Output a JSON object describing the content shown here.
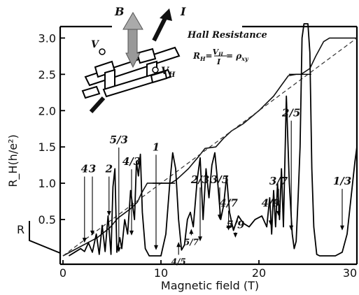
{
  "chart_data": {
    "type": "line",
    "title": "",
    "xlabel": "Magnetic field (T)",
    "ylabel": "R_H(h/e²)",
    "xlim": [
      0,
      30
    ],
    "ylim": [
      0,
      3.1
    ],
    "x_ticks": [
      "0",
      "10",
      "20",
      "30"
    ],
    "x_tick_values": [
      0,
      10,
      20,
      30
    ],
    "y_ticks": [
      "0.5",
      "1.0",
      "1.5",
      "2.0",
      "2.5",
      "3.0"
    ],
    "y_tick_values": [
      0.5,
      1.0,
      1.5,
      2.0,
      2.5,
      3.0
    ],
    "r_axis_label": "R",
    "grid": false,
    "series": [
      {
        "key": "hall",
        "x": [
          0,
          3.5,
          4.8,
          5.6,
          6.2,
          7.0,
          7.6,
          8.0,
          8.6,
          11.0,
          11.6,
          12.8,
          13.8,
          14.5,
          15.6,
          16.4,
          17.2,
          18.4,
          20.0,
          21.5,
          22.3,
          23.0,
          23.8,
          24.3,
          25.2,
          25.8,
          26.6,
          27.2,
          30.0
        ],
        "y": [
          0,
          0.25,
          0.39,
          0.52,
          0.58,
          0.66,
          0.74,
          0.86,
          1.0,
          1.0,
          1.05,
          1.2,
          1.36,
          1.48,
          1.5,
          1.62,
          1.72,
          1.82,
          2.0,
          2.2,
          2.35,
          2.48,
          2.5,
          2.5,
          2.58,
          2.75,
          2.95,
          3.0,
          3.0
        ]
      },
      {
        "key": "classical",
        "x": [
          0,
          30
        ],
        "y": [
          0,
          3.0
        ]
      },
      {
        "key": "longitudinal",
        "x": [
          0.6,
          1.2,
          1.8,
          2.2,
          2.6,
          3.0,
          3.4,
          3.7,
          4.0,
          4.3,
          4.6,
          4.9,
          5.1,
          5.3,
          5.5,
          5.8,
          6.0,
          6.3,
          6.6,
          6.9,
          7.1,
          7.3,
          7.5,
          7.7,
          7.9,
          8.1,
          8.4,
          8.8,
          9.5,
          10.0,
          10.5,
          10.9,
          11.2,
          11.5,
          11.8,
          12.1,
          12.4,
          12.7,
          13.0,
          13.3,
          13.7,
          14.0,
          14.3,
          14.6,
          14.9,
          15.2,
          15.5,
          15.8,
          16.1,
          16.4,
          16.7,
          17.0,
          17.4,
          17.9,
          18.4,
          19.0,
          19.6,
          20.3,
          20.8,
          21.1,
          21.3,
          21.5,
          21.7,
          21.9,
          22.1,
          22.3,
          22.5,
          22.8,
          23.1,
          23.4,
          23.6,
          23.8,
          24.0,
          24.2,
          24.4,
          24.6,
          24.8,
          25.0,
          25.2,
          25.4,
          25.6,
          25.9,
          26.2,
          26.5,
          26.8,
          27.3,
          27.8,
          28.5,
          29.0,
          29.4,
          29.8,
          30.0
        ],
        "y": [
          0.0,
          0.05,
          0.1,
          0.06,
          0.18,
          0.05,
          0.3,
          0.02,
          0.42,
          0.06,
          0.55,
          0.02,
          0.95,
          1.2,
          0.05,
          0.25,
          0.1,
          0.5,
          0.3,
          0.9,
          0.7,
          0.5,
          1.3,
          1.1,
          1.4,
          0.6,
          0.1,
          0.0,
          0.0,
          0.0,
          0.3,
          1.0,
          1.42,
          1.2,
          0.5,
          0.08,
          0.15,
          0.5,
          0.6,
          0.4,
          1.05,
          1.35,
          0.5,
          1.2,
          0.8,
          1.25,
          1.42,
          1.0,
          0.5,
          0.7,
          1.1,
          0.6,
          0.35,
          0.55,
          0.45,
          0.4,
          0.5,
          0.55,
          0.4,
          0.8,
          0.3,
          0.9,
          0.4,
          1.0,
          0.5,
          1.2,
          0.4,
          2.2,
          1.0,
          0.3,
          0.1,
          0.2,
          0.8,
          1.5,
          3.0,
          3.3,
          3.3,
          3.3,
          2.8,
          1.2,
          0.4,
          0.02,
          0.0,
          0.0,
          0.0,
          0.0,
          0.0,
          0.05,
          0.3,
          0.8,
          1.3,
          1.5
        ]
      }
    ],
    "integer_plateau_markers": [
      {
        "x": 10.3,
        "y": 1.0
      },
      {
        "x": 24.2,
        "y": 2.5
      }
    ],
    "fraction_labels": [
      {
        "label": "4",
        "x": 2.2,
        "y_label": 1.15,
        "y_arrow": 0.18
      },
      {
        "label": "3",
        "x": 3.0,
        "y_label": 1.15,
        "y_arrow": 0.28
      },
      {
        "label": "2",
        "x": 4.7,
        "y_label": 1.15,
        "y_arrow": 0.55
      },
      {
        "label": "5/3",
        "x": 5.7,
        "y_label": 1.55,
        "y_arrow": 0.05
      },
      {
        "label": "4/3",
        "x": 7.0,
        "y_label": 1.25,
        "y_arrow": 0.28
      },
      {
        "label": "1",
        "x": 9.5,
        "y_label": 1.45,
        "y_arrow": 0.08
      },
      {
        "label": "2/3",
        "x": 14.0,
        "y_label": 1.0,
        "y_arrow": 0.2
      },
      {
        "label": "3/5",
        "x": 16.0,
        "y_label": 1.0,
        "y_arrow": 0.5
      },
      {
        "label": "4/7",
        "x": 16.9,
        "y_label": 0.68,
        "y_arrow": 0.35
      },
      {
        "label": "5/9",
        "x": 17.6,
        "y_label": 0.38,
        "y_arrow": 0.25
      },
      {
        "label": "3/7",
        "x": 22.0,
        "y_label": 0.98,
        "y_arrow": 0.55
      },
      {
        "label": "4/9",
        "x": 21.2,
        "y_label": 0.68,
        "y_arrow": 0.42
      },
      {
        "label": "2/5",
        "x": 23.3,
        "y_label": 1.92,
        "y_arrow": 0.35
      },
      {
        "label": "1/3",
        "x": 28.5,
        "y_label": 0.98,
        "y_arrow": 0.35
      }
    ],
    "small_labels": [
      {
        "label": "5/7",
        "x": 13.1,
        "y_label": 0.15,
        "y_arrow": 0.38
      },
      {
        "label": "4/5",
        "x": 11.8,
        "y_label": -0.12,
        "y_arrow": 0.2
      }
    ]
  },
  "inset": {
    "title": "Hall Resistance",
    "formula": "R_H = V_H / I = ρ_xy",
    "field_label": "B",
    "current_label": "I",
    "voltage_label": "V",
    "hall_voltage_label": "V_H"
  }
}
